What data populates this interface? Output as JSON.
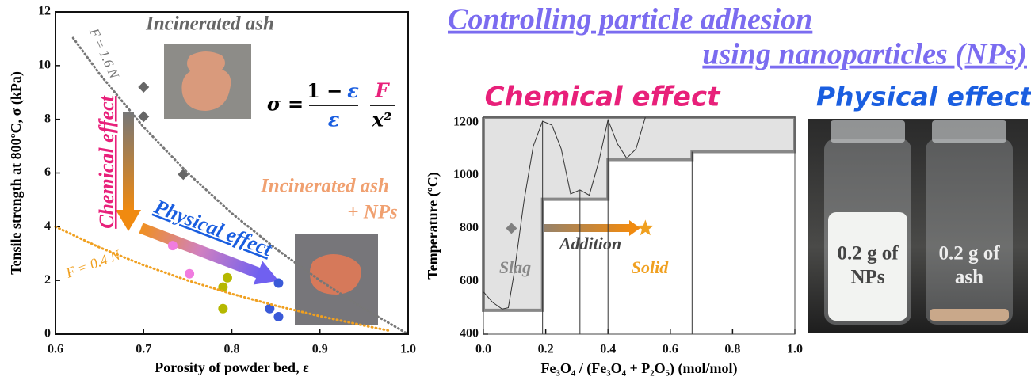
{
  "header": {
    "title_line1": "Controlling particle adhesion",
    "title_line2": "using nanoparticles (NPs)",
    "chemical_heading": "Chemical effect",
    "physical_heading": "Physical effect"
  },
  "photo": {
    "left_label": [
      "0.2 g of",
      "NPs"
    ],
    "right_label": [
      "0.2 g of",
      "ash"
    ]
  },
  "chart_data": [
    {
      "type": "scatter",
      "xlabel": "Porosity of powder bed, ε",
      "ylabel": "Tensile strength at 800ºC, σ (kPa)",
      "xlim": [
        0.6,
        1.0
      ],
      "xticks": [
        0.6,
        0.7,
        0.8,
        0.9,
        {
          "value": 1.0,
          "label": "1.0"
        }
      ],
      "ylim": [
        0,
        12
      ],
      "yticks": [
        0,
        2,
        4,
        6,
        8,
        10,
        12
      ],
      "series": [
        {
          "color": "#666666",
          "marker": "diamond",
          "x": [
            0.7,
            0.7,
            0.745
          ],
          "values": [
            9.2,
            8.1,
            5.95
          ]
        },
        {
          "color": "#f07ce0",
          "marker": "circle",
          "x": [
            0.733,
            0.752
          ],
          "values": [
            3.3,
            2.25
          ]
        },
        {
          "color": "#b5b800",
          "marker": "circle",
          "x": [
            0.795,
            0.79,
            0.79
          ],
          "values": [
            2.1,
            1.75,
            0.95
          ]
        },
        {
          "color": "#3a5ad8",
          "marker": "circle",
          "x": [
            0.853,
            0.843,
            0.853
          ],
          "values": [
            1.9,
            0.95,
            0.65
          ]
        },
        {
          "color": "#777777",
          "marker": "dotted-line",
          "x": [
            0.62,
            0.65,
            0.7,
            0.75,
            0.8,
            0.85,
            0.9,
            0.95,
            1.0
          ],
          "values": [
            11.03,
            9.69,
            7.71,
            6.0,
            4.5,
            3.18,
            2.0,
            0.95,
            0
          ]
        },
        {
          "color": "#f0a020",
          "marker": "dotted-line",
          "x": [
            0.6,
            0.65,
            0.7,
            0.75,
            0.8,
            0.85,
            0.9,
            0.95,
            0.98
          ],
          "values": [
            4.0,
            3.23,
            2.57,
            2.0,
            1.5,
            1.06,
            0.67,
            0.32,
            0.12
          ]
        }
      ],
      "annotations": {
        "ash": "Incinerated ash",
        "ash_nps": [
          "Incinerated ash",
          "+ NPs"
        ],
        "f_high": "F = 1.6 N",
        "f_low": "F = 0.4 N",
        "chemical": "Chemical effect",
        "physical": "Physical effect"
      },
      "equation": {
        "lhs": "σ =",
        "num_a": "1 −",
        "num_b": "ε",
        "den": "ε",
        "factor_num": "F",
        "factor_den": "x²"
      }
    },
    {
      "type": "line",
      "xlabel": "Fe₃O₄ / (Fe₃O₄ + P₂O₅) (mol/mol)",
      "ylabel": "Temperature (ºC)",
      "xlim": [
        0,
        1.0
      ],
      "xticks": [
        {
          "value": 0,
          "label": "0.0"
        },
        0.2,
        0.4,
        0.6,
        0.8,
        {
          "value": 1.0,
          "label": "1.0"
        }
      ],
      "ylim": [
        400,
        1220
      ],
      "yticks": [
        400,
        600,
        800,
        1000,
        1200
      ],
      "series": [
        {
          "color": "#888888",
          "marker": "thick-line",
          "fill": "#e2e2e2",
          "x": [
            0,
            1.0,
            1.0,
            0.67,
            0.67,
            0.4,
            0.4,
            0.19,
            0.19,
            0,
            0
          ],
          "values": [
            1220,
            1220,
            1090,
            1090,
            1060,
            1060,
            910,
            910,
            490,
            490,
            1220
          ]
        },
        {
          "color": "#333333",
          "marker": "line",
          "x": [
            0,
            0.03,
            0.06,
            0.08,
            0.1,
            0.13,
            0.16,
            0.19,
            0.22,
            0.25,
            0.28,
            0.31,
            0.34,
            0.37,
            0.4,
            0.43,
            0.46,
            0.49,
            0.52
          ],
          "values": [
            560,
            520,
            495,
            500,
            640,
            900,
            1110,
            1205,
            1190,
            1100,
            930,
            945,
            925,
            1050,
            1210,
            1120,
            1065,
            1100,
            1220
          ]
        },
        {
          "color": "#333333",
          "marker": "line",
          "x": [
            0.19,
            0.19
          ],
          "values": [
            400,
            1205
          ]
        },
        {
          "color": "#333333",
          "marker": "line",
          "x": [
            0.31,
            0.31
          ],
          "values": [
            400,
            945
          ]
        },
        {
          "color": "#333333",
          "marker": "line",
          "x": [
            0.4,
            0.4
          ],
          "values": [
            400,
            1210
          ]
        },
        {
          "color": "#333333",
          "marker": "line",
          "x": [
            0.67,
            0.67
          ],
          "values": [
            400,
            1090
          ]
        },
        {
          "color": "#808080",
          "marker": "diamond",
          "x": [
            0.09
          ],
          "values": [
            800
          ]
        },
        {
          "color": "#f0a020",
          "marker": "star",
          "x": [
            0.52
          ],
          "values": [
            800
          ]
        }
      ],
      "annotations": {
        "slag": "Slag",
        "addition": "Addition",
        "solid": "Solid"
      }
    }
  ]
}
